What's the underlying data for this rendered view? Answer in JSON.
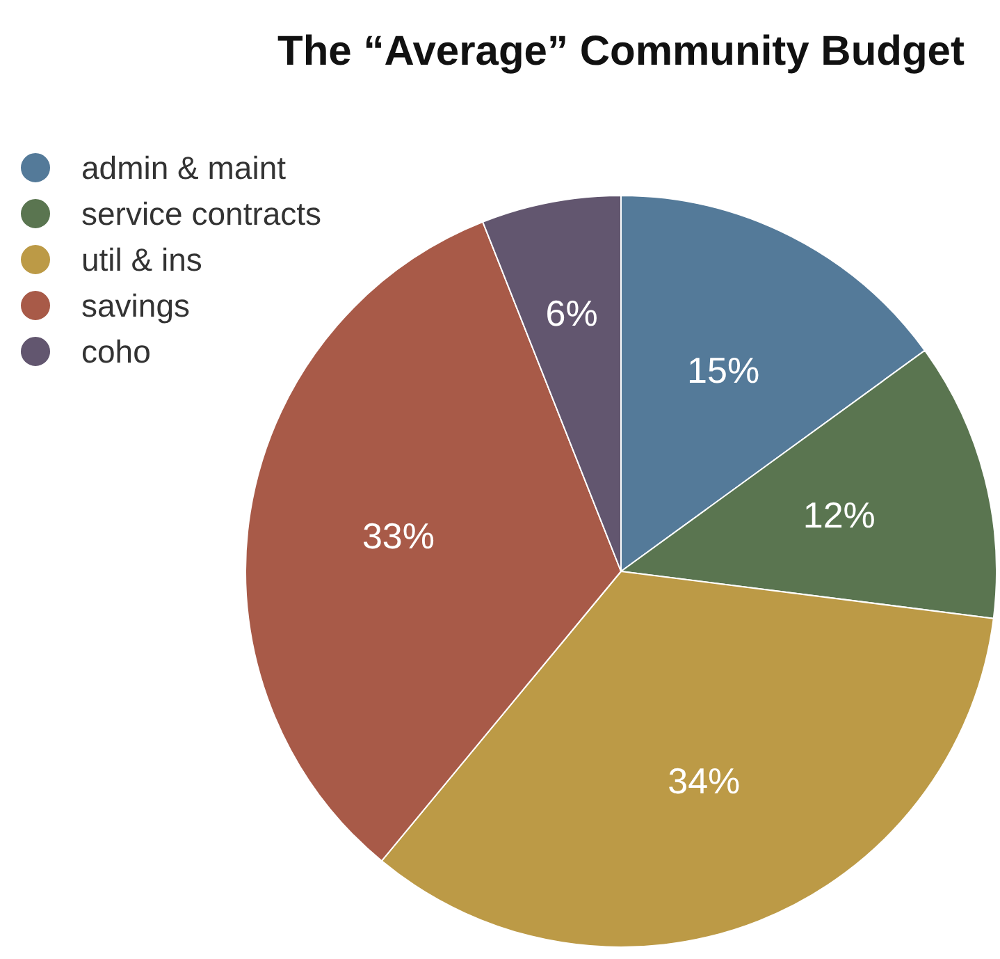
{
  "chart_data": {
    "type": "pie",
    "title": "The “Average” Community Budget",
    "categories": [
      "admin & maint",
      "service contracts",
      "util & ins",
      "savings",
      "coho"
    ],
    "values": [
      15,
      12,
      34,
      33,
      6
    ],
    "colors": [
      "#547a99",
      "#5a7550",
      "#bc9a46",
      "#a85a48",
      "#62566f"
    ],
    "value_labels": [
      "15%",
      "12%",
      "34%",
      "33%",
      "6%"
    ],
    "legend": "top left"
  }
}
